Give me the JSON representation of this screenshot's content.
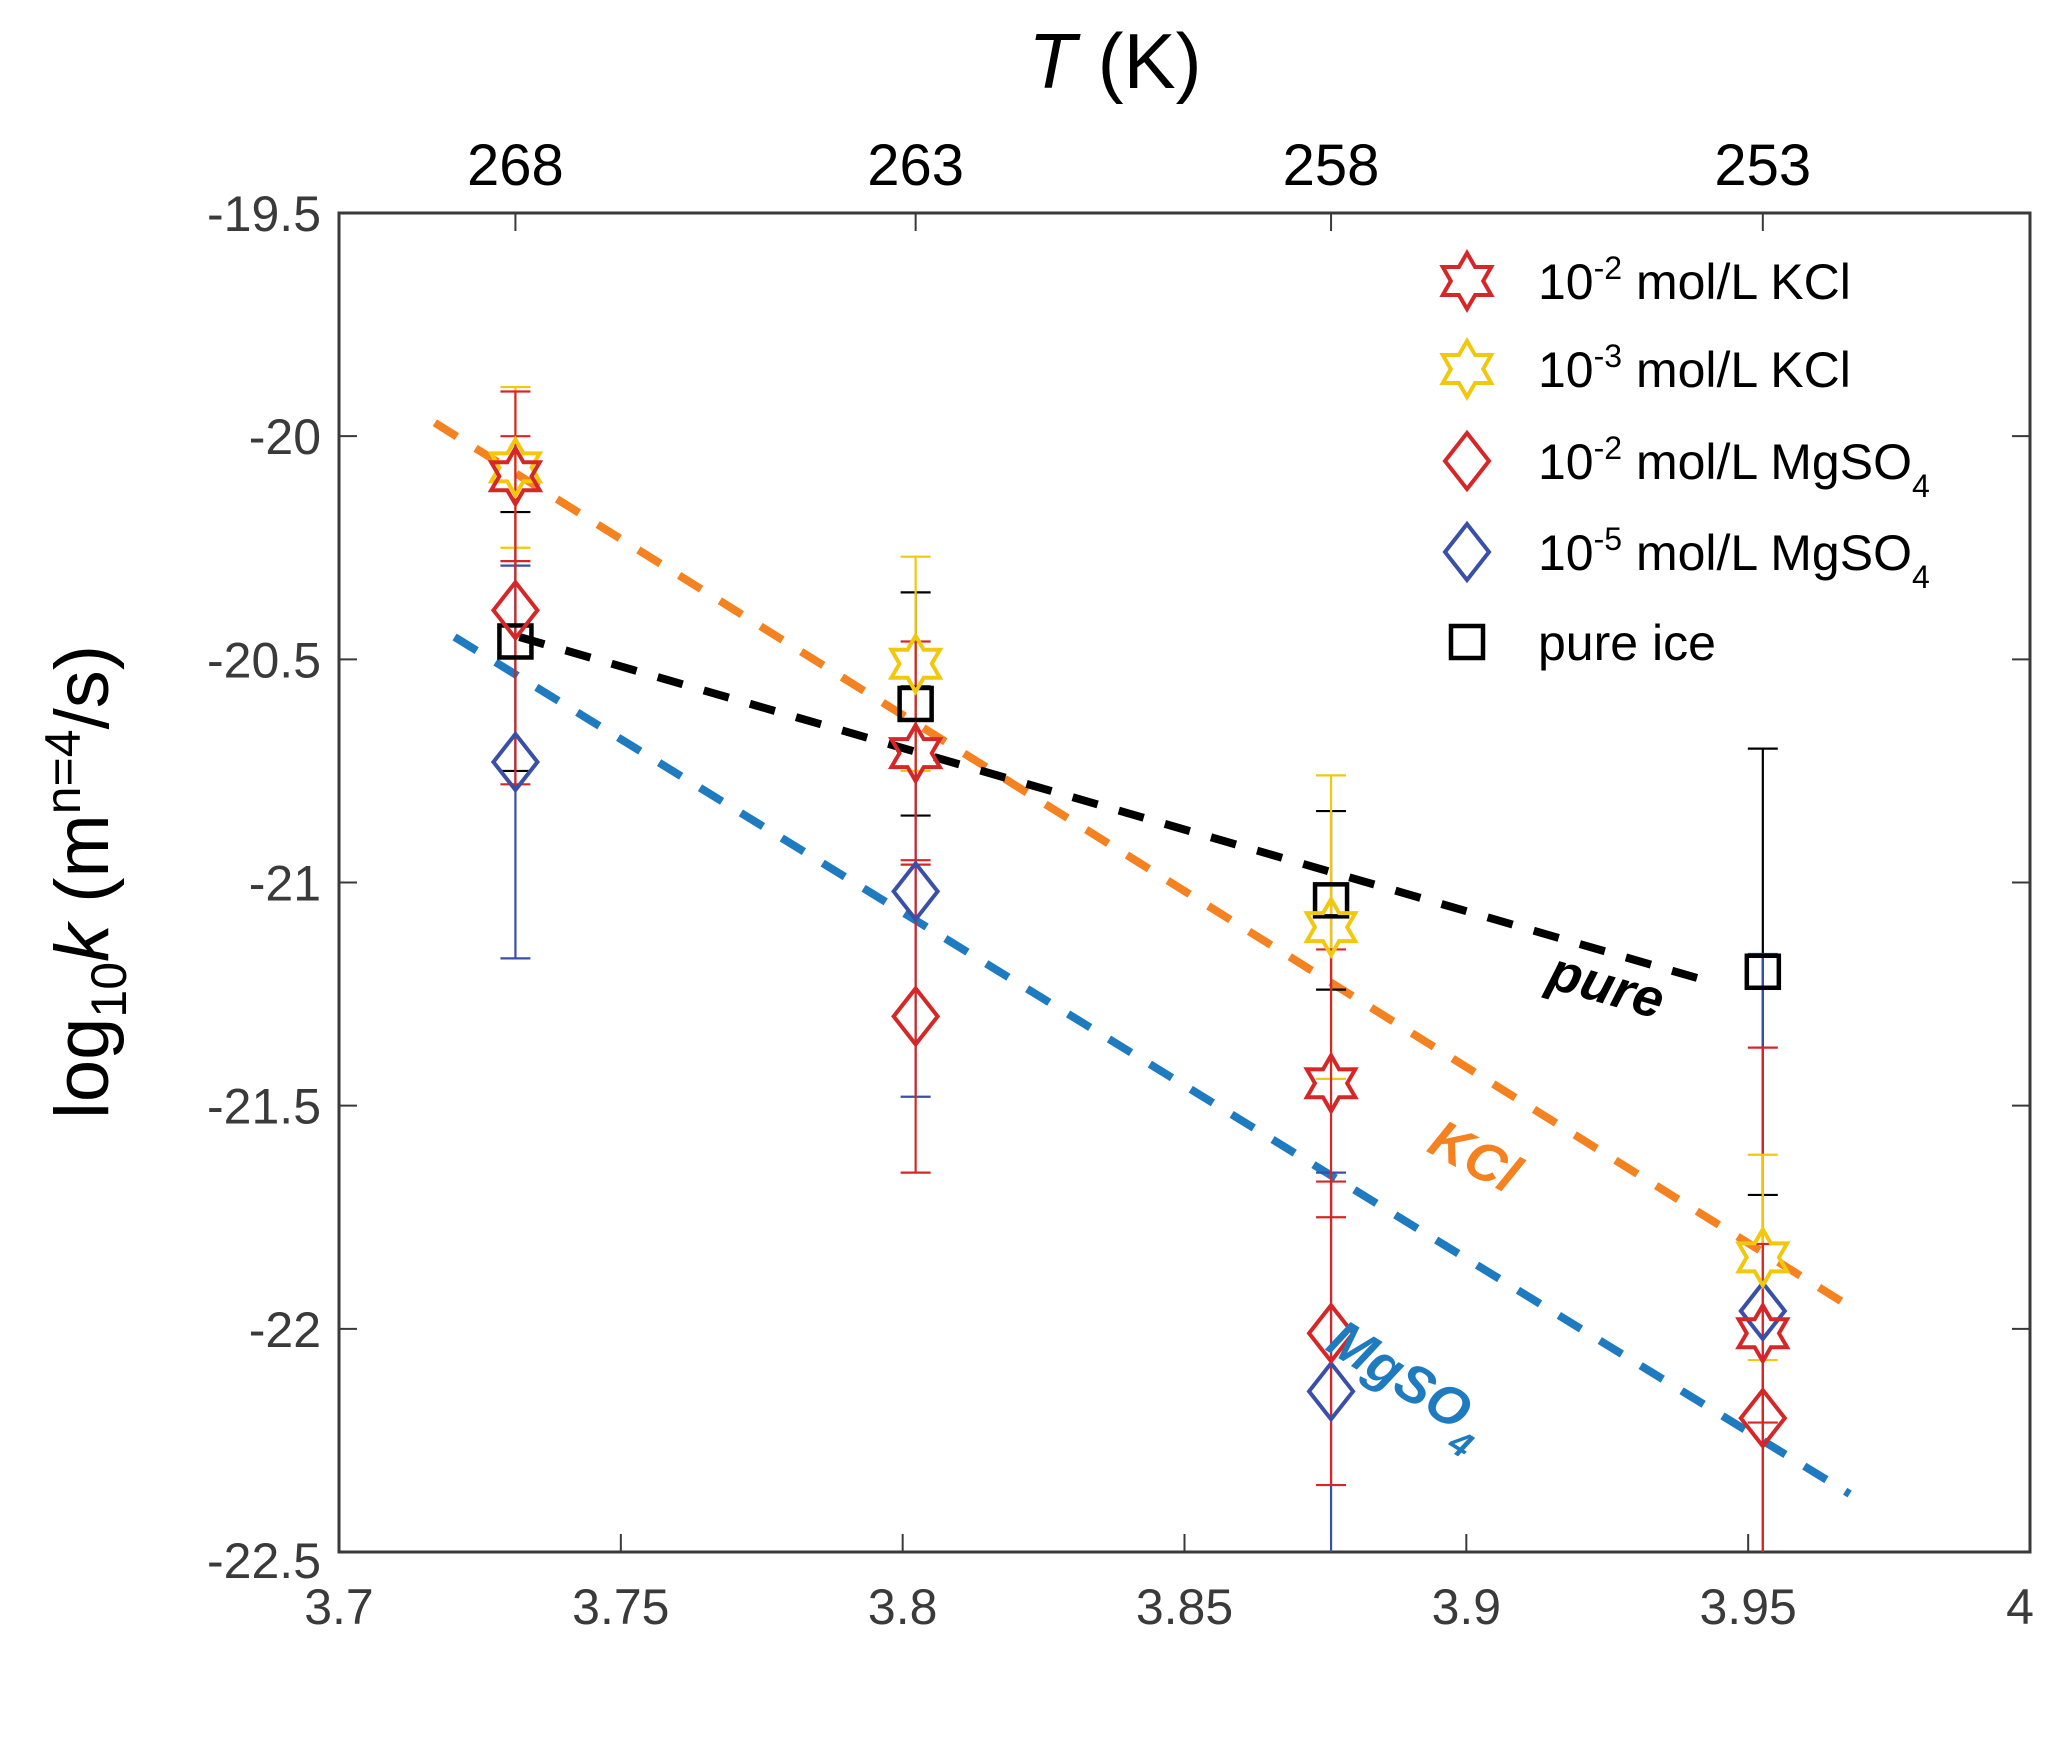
{
  "chart_data": {
    "type": "scatter",
    "title": "",
    "xlabel": "",
    "ylabel": "log10k (m^n=4/s)",
    "ylabel_parts": {
      "base": "log",
      "sub": "10",
      "var": "k",
      "unit_open": " (m",
      "sup": "n=4",
      "unit_close": "/s)"
    },
    "top_xlabel": {
      "var": "T",
      "unit": " (K)"
    },
    "xlim": [
      3.7,
      4.0
    ],
    "ylim": [
      -22.5,
      -19.5
    ],
    "x_ticks": [
      3.7,
      3.75,
      3.8,
      3.85,
      3.9,
      3.95,
      4.0
    ],
    "x_tick_labels": [
      "3.7",
      "3.75",
      "3.8",
      "3.85",
      "3.9",
      "3.95",
      "4"
    ],
    "y_ticks": [
      -19.5,
      -20,
      -20.5,
      -21,
      -21.5,
      -22,
      -22.5
    ],
    "y_tick_labels": [
      "-19.5",
      "-20",
      "-20.5",
      "-21",
      "-21.5",
      "-22",
      "-22.5"
    ],
    "top_ticks": [
      {
        "x": 3.7313,
        "label": "268"
      },
      {
        "x": 3.8023,
        "label": "263"
      },
      {
        "x": 3.876,
        "label": "258"
      },
      {
        "x": 3.9526,
        "label": "253"
      }
    ],
    "grid": false,
    "legend_position": "top-right",
    "series": [
      {
        "name": "10-2 mol/L KCl",
        "legend": {
          "pre": "10",
          "sup": "-2",
          "post": " mol/L KCl",
          "sub": ""
        },
        "marker": "hexagram",
        "color": "#d62728",
        "x": [
          3.7313,
          3.8023,
          3.876,
          3.9526
        ],
        "y": [
          -20.09,
          -20.71,
          -21.45,
          -22.01
        ],
        "err": [
          0.19,
          0.25,
          0.3,
          0.2
        ]
      },
      {
        "name": "10-3 mol/L KCl",
        "legend": {
          "pre": "10",
          "sup": "-3",
          "post": " mol/L KCl",
          "sub": ""
        },
        "marker": "hexagram",
        "color": "#f2c80f",
        "x": [
          3.7313,
          3.8023,
          3.876,
          3.9526
        ],
        "y": [
          -20.07,
          -20.51,
          -21.1,
          -21.84
        ],
        "err": [
          0.18,
          0.24,
          0.34,
          0.23
        ]
      },
      {
        "name": "10-2 mol/L MgSO4",
        "legend": {
          "pre": "10",
          "sup": "-2",
          "post": " mol/L MgSO",
          "sub": "4"
        },
        "marker": "diamond",
        "color": "#d62728",
        "x": [
          3.7313,
          3.8023,
          3.876,
          3.9526
        ],
        "y": [
          -20.39,
          -21.3,
          -22.01,
          -22.2
        ],
        "err": [
          0.39,
          0.35,
          0.34,
          0.83
        ]
      },
      {
        "name": "10-5 mol/L MgSO4",
        "legend": {
          "pre": "10",
          "sup": "-5",
          "post": " mol/L MgSO",
          "sub": "4"
        },
        "marker": "diamond",
        "color": "#3a4fa8",
        "x": [
          3.7313,
          3.8023,
          3.876,
          3.9526
        ],
        "y": [
          -20.73,
          -21.02,
          -22.14,
          -21.96
        ],
        "err": [
          0.44,
          0.46,
          0.49,
          0.8
        ]
      },
      {
        "name": "pure ice",
        "legend": {
          "pre": "pure ice",
          "sup": "",
          "post": "",
          "sub": ""
        },
        "marker": "square",
        "color": "#000000",
        "x": [
          3.7313,
          3.8023,
          3.876,
          3.9526
        ],
        "y": [
          -20.46,
          -20.6,
          -21.04,
          -21.2
        ],
        "err": [
          0.29,
          0.25,
          0.2,
          0.5
        ]
      }
    ],
    "fit_lines": [
      {
        "name": "KCl fit",
        "label": "KCl",
        "sub": "",
        "color": "#f58220",
        "x": [
          3.717,
          3.968
        ],
        "y": [
          -19.97,
          -21.95
        ]
      },
      {
        "name": "MgSO4 fit",
        "label": "MgSO",
        "sub": "4",
        "color": "#1f7bbf",
        "x": [
          3.7205,
          3.968
        ],
        "y": [
          -20.45,
          -22.37
        ]
      },
      {
        "name": "pure fit",
        "label": "pure",
        "sub": "",
        "color": "#000000",
        "x": [
          3.732,
          3.9426
        ],
        "y": [
          -20.45,
          -21.22
        ]
      }
    ],
    "annotations": [
      {
        "text": "pure",
        "color": "#000000",
        "x": 3.924,
        "y": -21.27,
        "angle": 16
      },
      {
        "text": "KCl",
        "color": "#f58220",
        "x": 3.9,
        "y": -21.65,
        "angle": 28
      },
      {
        "text": "MgSO",
        "sub": "4",
        "color": "#1f7bbf",
        "x": 3.888,
        "y": -22.15,
        "angle": 32
      }
    ]
  }
}
